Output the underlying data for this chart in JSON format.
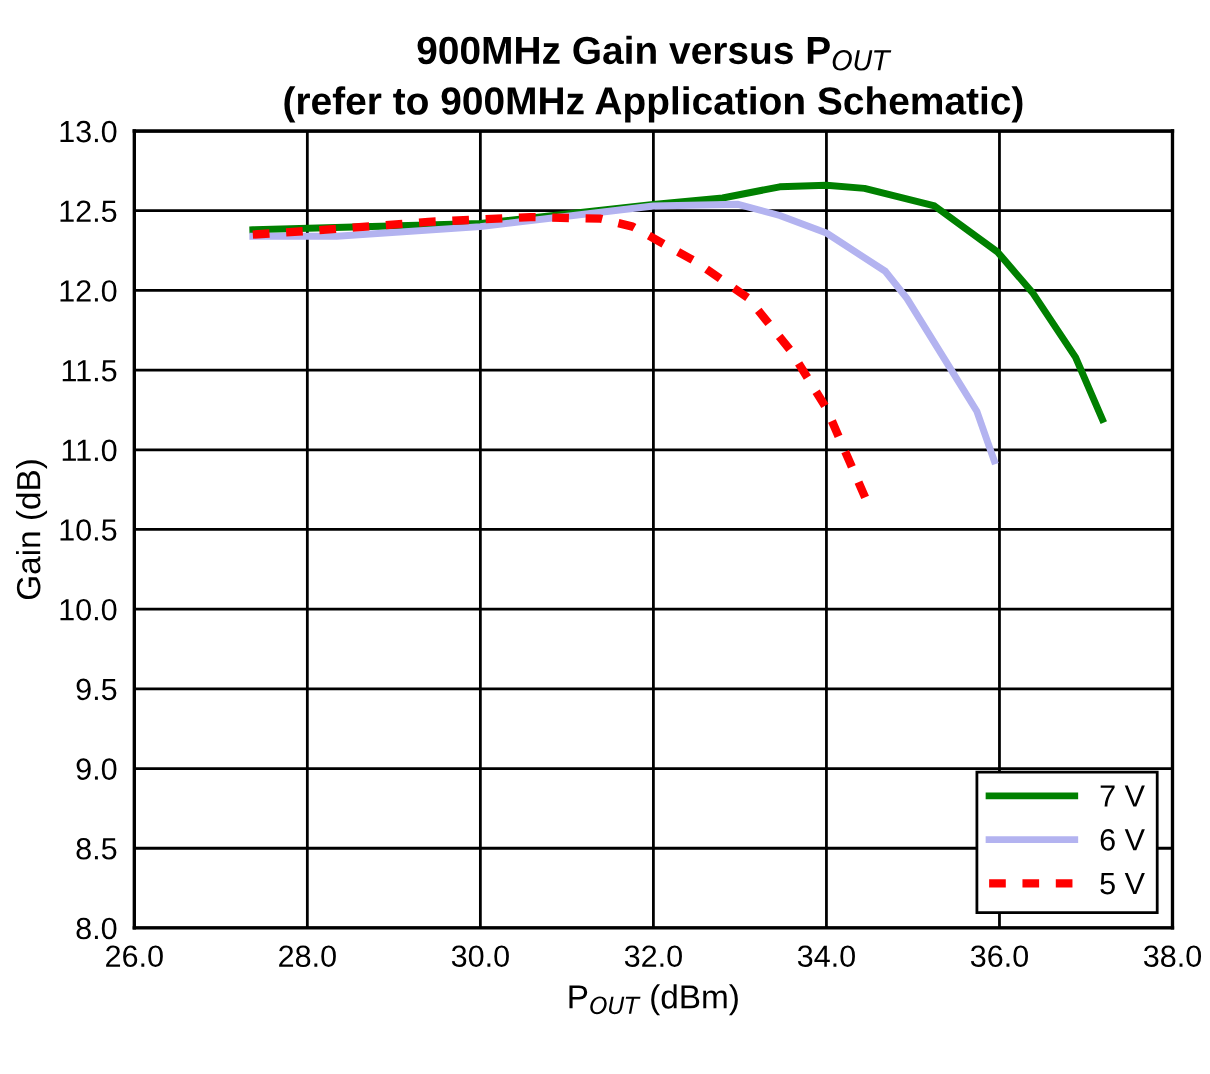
{
  "chart_data": {
    "type": "line",
    "title": "900MHz Gain versus P$_{OUT}$\n(refer to 900MHz Application Schematic)",
    "xlabel": "P$_{OUT}$ (dBm)",
    "ylabel": "Gain (dB)",
    "xlim": [
      26,
      38
    ],
    "xticks": [
      {
        "value": 26,
        "label": "26.0"
      },
      {
        "value": 28,
        "label": "28.0"
      },
      {
        "value": 30,
        "label": "30.0"
      },
      {
        "value": 32,
        "label": "32.0"
      },
      {
        "value": 34,
        "label": "34.0"
      },
      {
        "value": 36,
        "label": "36.0"
      },
      {
        "value": 38,
        "label": "38.0"
      }
    ],
    "ylim": [
      8,
      13
    ],
    "yticks": [
      {
        "value": 8,
        "label": "8.0"
      },
      {
        "value": 8.5,
        "label": "8.5"
      },
      {
        "value": 9,
        "label": "9.0"
      },
      {
        "value": 9.5,
        "label": "9.5"
      },
      {
        "value": 10,
        "label": "10.0"
      },
      {
        "value": 10.5,
        "label": "10.5"
      },
      {
        "value": 11,
        "label": "11.0"
      },
      {
        "value": 11.5,
        "label": "11.5"
      },
      {
        "value": 12,
        "label": "12.0"
      },
      {
        "value": 12.5,
        "label": "12.5"
      },
      {
        "value": 13,
        "label": "13.0"
      }
    ],
    "grid": true,
    "legend": "bottom right",
    "series": [
      {
        "name": "7 V",
        "color": "#008000",
        "line_style": "solid",
        "x": [
          27.37,
          30,
          32,
          32.8,
          33.46,
          34,
          34.44,
          35.25,
          35.98,
          36.39,
          36.88,
          37.19
        ],
        "values": [
          12.38,
          12.42,
          12.54,
          12.58,
          12.65,
          12.66,
          12.64,
          12.53,
          12.24,
          11.98,
          11.58,
          11.19
        ]
      },
      {
        "name": "6 V",
        "color": "#b3b3f0",
        "line_style": "solid",
        "x": [
          27.37,
          28.34,
          30,
          32,
          32.98,
          33.46,
          34,
          34.68,
          34.93,
          35.41,
          35.74,
          35.94
        ],
        "values": [
          12.34,
          12.34,
          12.4,
          12.53,
          12.54,
          12.47,
          12.36,
          12.12,
          11.95,
          11.53,
          11.24,
          10.93
        ]
      },
      {
        "name": "5 V",
        "color": "#ff0000",
        "line_style": "dashed",
        "x": [
          27.37,
          28.18,
          29.4,
          30.58,
          31.39,
          31.76,
          32.49,
          33.1,
          33.59,
          34,
          34.28,
          34.48
        ],
        "values": [
          12.35,
          12.38,
          12.43,
          12.46,
          12.45,
          12.4,
          12.18,
          11.95,
          11.62,
          11.26,
          10.91,
          10.66
        ]
      }
    ]
  }
}
